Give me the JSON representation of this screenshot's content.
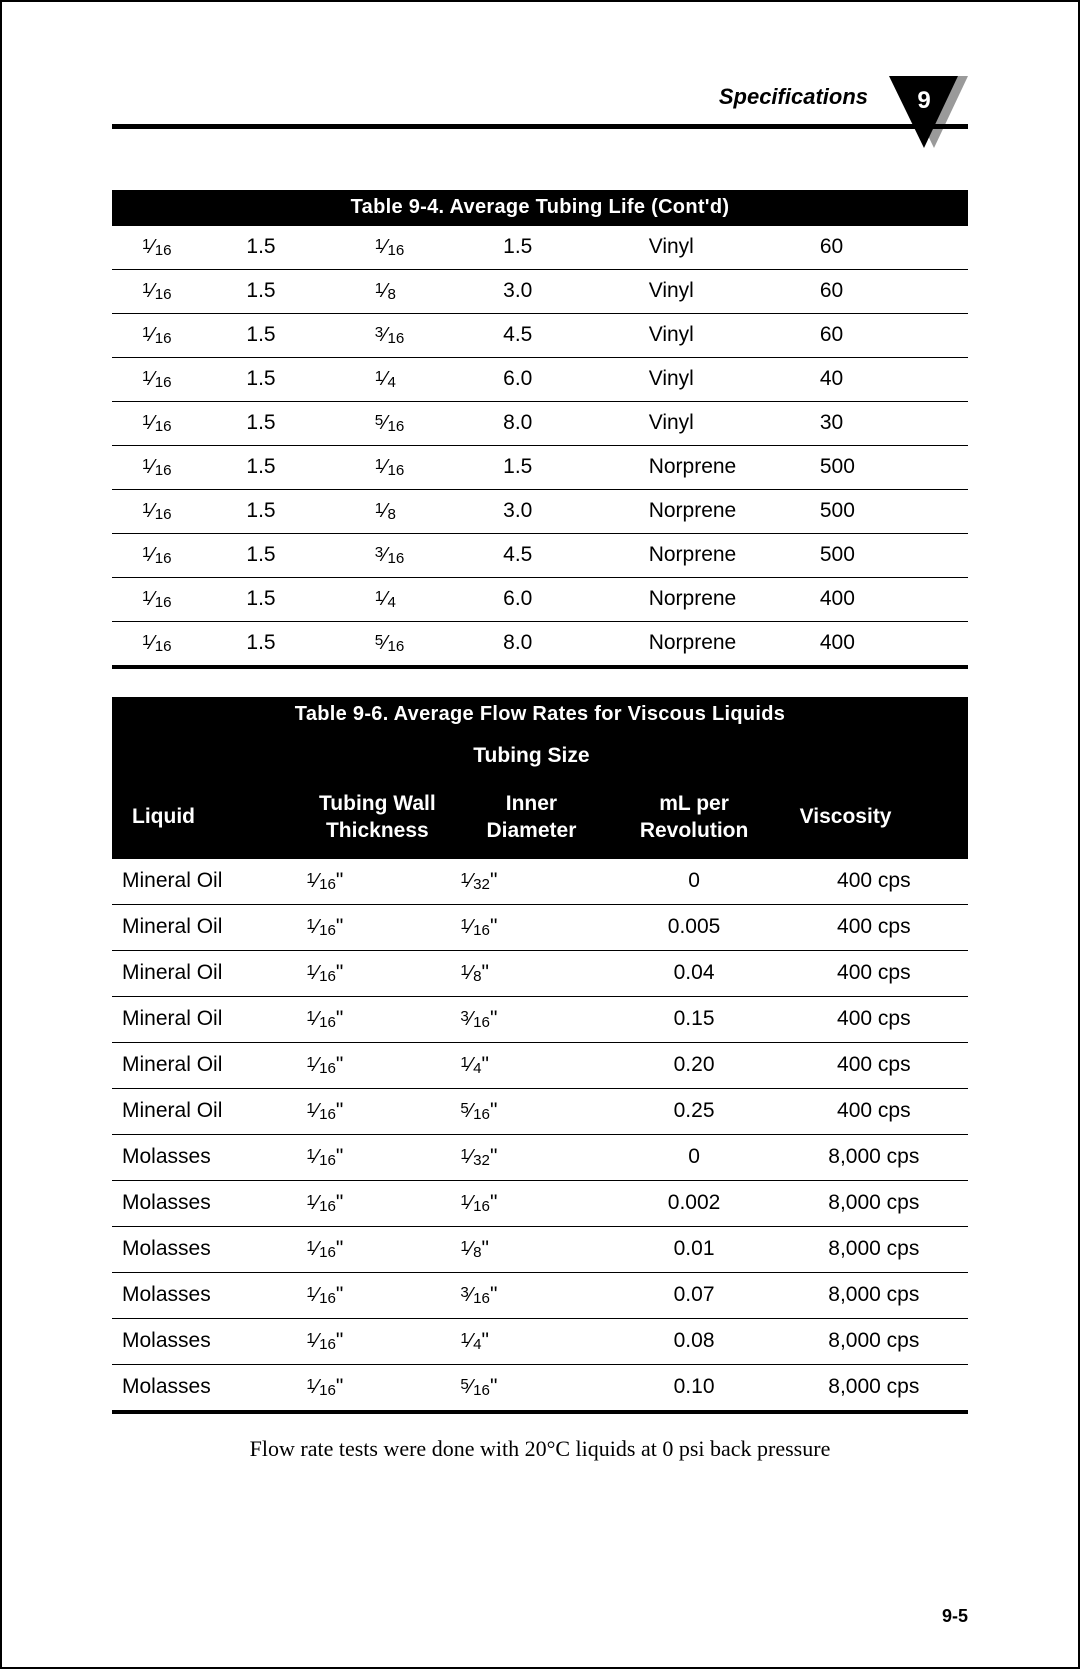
{
  "header": {
    "title": "Specifications",
    "chapter_number": "9",
    "triangle": {
      "fill": "#000000",
      "shadow": "#9a9a9a",
      "text_color": "#ffffff"
    }
  },
  "table94": {
    "caption": "Table 9-4.  Average Tubing Life (Cont'd)",
    "columns": [
      "col1",
      "col2",
      "col3",
      "col4",
      "col5",
      "col6"
    ],
    "rows": [
      {
        "c1_num": "1",
        "c1_den": "16",
        "c2": "1.5",
        "c3_num": "1",
        "c3_den": "16",
        "c4": "1.5",
        "c5": "Vinyl",
        "c6": "60"
      },
      {
        "c1_num": "1",
        "c1_den": "16",
        "c2": "1.5",
        "c3_num": "1",
        "c3_den": "8",
        "c4": "3.0",
        "c5": "Vinyl",
        "c6": "60"
      },
      {
        "c1_num": "1",
        "c1_den": "16",
        "c2": "1.5",
        "c3_num": "3",
        "c3_den": "16",
        "c4": "4.5",
        "c5": "Vinyl",
        "c6": "60"
      },
      {
        "c1_num": "1",
        "c1_den": "16",
        "c2": "1.5",
        "c3_num": "1",
        "c3_den": "4",
        "c4": "6.0",
        "c5": "Vinyl",
        "c6": "40"
      },
      {
        "c1_num": "1",
        "c1_den": "16",
        "c2": "1.5",
        "c3_num": "5",
        "c3_den": "16",
        "c4": "8.0",
        "c5": "Vinyl",
        "c6": "30"
      },
      {
        "c1_num": "1",
        "c1_den": "16",
        "c2": "1.5",
        "c3_num": "1",
        "c3_den": "16",
        "c4": "1.5",
        "c5": "Norprene",
        "c6": "500"
      },
      {
        "c1_num": "1",
        "c1_den": "16",
        "c2": "1.5",
        "c3_num": "1",
        "c3_den": "8",
        "c4": "3.0",
        "c5": "Norprene",
        "c6": "500"
      },
      {
        "c1_num": "1",
        "c1_den": "16",
        "c2": "1.5",
        "c3_num": "3",
        "c3_den": "16",
        "c4": "4.5",
        "c5": "Norprene",
        "c6": "500"
      },
      {
        "c1_num": "1",
        "c1_den": "16",
        "c2": "1.5",
        "c3_num": "1",
        "c3_den": "4",
        "c4": "6.0",
        "c5": "Norprene",
        "c6": "400"
      },
      {
        "c1_num": "1",
        "c1_den": "16",
        "c2": "1.5",
        "c3_num": "5",
        "c3_den": "16",
        "c4": "8.0",
        "c5": "Norprene",
        "c6": "400"
      }
    ]
  },
  "table96": {
    "caption": "Table 9-6. Average Flow Rates for Viscous Liquids",
    "super_header": "Tubing Size",
    "headers": {
      "c1": "Liquid",
      "c2a": "Tubing Wall",
      "c2b": "Thickness",
      "c3a": "Inner",
      "c3b": "Diameter",
      "c4a": "mL per",
      "c4b": "Revolution",
      "c5": "Viscosity"
    },
    "rows": [
      {
        "c1": "Mineral Oil",
        "c2_num": "1",
        "c2_den": "16",
        "c3_num": "1",
        "c3_den": "32",
        "c4": "0",
        "c5": "400 cps"
      },
      {
        "c1": "Mineral Oil",
        "c2_num": "1",
        "c2_den": "16",
        "c3_num": "1",
        "c3_den": "16",
        "c4": "0.005",
        "c5": "400 cps"
      },
      {
        "c1": "Mineral Oil",
        "c2_num": "1",
        "c2_den": "16",
        "c3_num": "1",
        "c3_den": "8",
        "c4": "0.04",
        "c5": "400 cps"
      },
      {
        "c1": "Mineral Oil",
        "c2_num": "1",
        "c2_den": "16",
        "c3_num": "3",
        "c3_den": "16",
        "c4": "0.15",
        "c5": "400 cps"
      },
      {
        "c1": "Mineral Oil",
        "c2_num": "1",
        "c2_den": "16",
        "c3_num": "1",
        "c3_den": "4",
        "c4": "0.20",
        "c5": "400 cps"
      },
      {
        "c1": "Mineral Oil",
        "c2_num": "1",
        "c2_den": "16",
        "c3_num": "5",
        "c3_den": "16",
        "c4": "0.25",
        "c5": "400 cps"
      },
      {
        "c1": "Molasses",
        "c2_num": "1",
        "c2_den": "16",
        "c3_num": "1",
        "c3_den": "32",
        "c4": "0",
        "c5": "8,000 cps"
      },
      {
        "c1": "Molasses",
        "c2_num": "1",
        "c2_den": "16",
        "c3_num": "1",
        "c3_den": "16",
        "c4": "0.002",
        "c5": "8,000 cps"
      },
      {
        "c1": "Molasses",
        "c2_num": "1",
        "c2_den": "16",
        "c3_num": "1",
        "c3_den": "8",
        "c4": "0.01",
        "c5": "8,000 cps"
      },
      {
        "c1": "Molasses",
        "c2_num": "1",
        "c2_den": "16",
        "c3_num": "3",
        "c3_den": "16",
        "c4": "0.07",
        "c5": "8,000 cps"
      },
      {
        "c1": "Molasses",
        "c2_num": "1",
        "c2_den": "16",
        "c3_num": "1",
        "c3_den": "4",
        "c4": "0.08",
        "c5": "8,000 cps"
      },
      {
        "c1": "Molasses",
        "c2_num": "1",
        "c2_den": "16",
        "c3_num": "5",
        "c3_den": "16",
        "c4": "0.10",
        "c5": "8,000 cps"
      }
    ]
  },
  "footnote": "Flow rate tests were done with 20°C liquids at 0 psi back pressure",
  "page_number": "9-5",
  "colors": {
    "text": "#000000",
    "header_bg": "#000000",
    "header_text": "#ffffff",
    "rule": "#000000",
    "page_bg": "#ffffff"
  },
  "typography": {
    "body_font": "Helvetica",
    "serif_font": "Georgia",
    "caption_font": "Arial Narrow",
    "body_size_pt": 16,
    "caption_size_pt": 15,
    "header_cell_size_pt": 13
  }
}
